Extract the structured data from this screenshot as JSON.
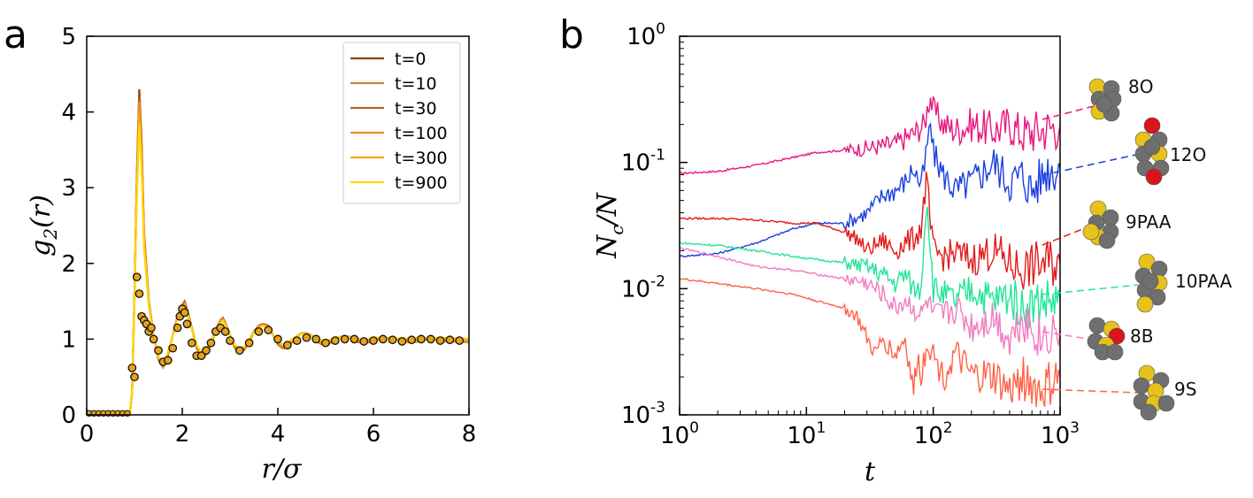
{
  "chart_data": [
    {
      "type": "line",
      "panel_label": "a",
      "xlabel": "r/σ",
      "ylabel": "g2(r)",
      "xlim": [
        0,
        8
      ],
      "ylim": [
        0,
        5
      ],
      "xticks": [
        0,
        2,
        4,
        6,
        8
      ],
      "yticks": [
        0,
        1,
        2,
        3,
        4,
        5
      ],
      "grid": false,
      "legend_position": "top-right",
      "series": [
        {
          "name": "t=0",
          "color": "#8B4513"
        },
        {
          "name": "t=10",
          "color": "#CD853F"
        },
        {
          "name": "t=30",
          "color": "#B8651B"
        },
        {
          "name": "t=100",
          "color": "#F08C28"
        },
        {
          "name": "t=300",
          "color": "#FFA500"
        },
        {
          "name": "t=900",
          "color": "#FFD700"
        }
      ],
      "curve": {
        "x": [
          0,
          0.9,
          0.95,
          1.0,
          1.05,
          1.1,
          1.15,
          1.2,
          1.3,
          1.4,
          1.5,
          1.6,
          1.7,
          1.8,
          1.9,
          2.0,
          2.05,
          2.1,
          2.2,
          2.3,
          2.4,
          2.5,
          2.6,
          2.7,
          2.8,
          2.85,
          2.9,
          3.0,
          3.1,
          3.2,
          3.3,
          3.4,
          3.5,
          3.6,
          3.7,
          3.8,
          3.85,
          3.9,
          4.0,
          4.1,
          4.2,
          4.3,
          4.4,
          4.5,
          4.6,
          4.7,
          4.8,
          4.9,
          5.0,
          5.1,
          5.2,
          5.3,
          5.4,
          5.5,
          5.6,
          5.7,
          5.8,
          5.9,
          6.0,
          6.2,
          6.4,
          6.6,
          6.8,
          7.0,
          7.2,
          7.4,
          7.6,
          7.8,
          8.0
        ],
        "y": [
          0,
          0,
          0.3,
          1.6,
          3.2,
          4.3,
          3.6,
          2.4,
          1.5,
          1.05,
          0.75,
          0.65,
          0.8,
          1.05,
          1.3,
          1.45,
          1.5,
          1.4,
          1.15,
          0.9,
          0.8,
          0.82,
          0.95,
          1.12,
          1.25,
          1.28,
          1.22,
          1.05,
          0.9,
          0.85,
          0.88,
          0.98,
          1.1,
          1.18,
          1.2,
          1.18,
          1.12,
          1.05,
          0.95,
          0.9,
          0.92,
          0.98,
          1.04,
          1.08,
          1.08,
          1.05,
          1.0,
          0.96,
          0.95,
          0.97,
          1.0,
          1.03,
          1.04,
          1.03,
          1.0,
          0.98,
          0.97,
          0.98,
          1.0,
          1.02,
          1.01,
          0.99,
          0.98,
          1.0,
          1.01,
          1.0,
          0.99,
          0.99,
          0.98
        ]
      },
      "markers": {
        "x": [
          0.95,
          1.0,
          1.05,
          1.1,
          1.15,
          1.2,
          1.25,
          1.3,
          1.35,
          1.4,
          1.5,
          1.6,
          1.7,
          1.8,
          1.9,
          1.95,
          2.0,
          2.05,
          2.1,
          2.2,
          2.3,
          2.4,
          2.5,
          2.6,
          2.7,
          2.8,
          2.9,
          3.0,
          3.2,
          3.4,
          3.6,
          3.8,
          4.0,
          4.2,
          4.4,
          4.6,
          4.8,
          5.0,
          5.2,
          5.4,
          5.6,
          5.8,
          6.0,
          6.2,
          6.4,
          6.6,
          6.8,
          7.0,
          7.2,
          7.4,
          7.6,
          7.8
        ],
        "y": [
          0.62,
          0.5,
          1.82,
          1.6,
          1.3,
          1.25,
          1.2,
          1.1,
          1.15,
          1.0,
          0.85,
          0.7,
          0.72,
          0.88,
          1.15,
          1.3,
          1.4,
          1.35,
          1.2,
          0.95,
          0.78,
          0.78,
          0.85,
          0.95,
          1.1,
          1.15,
          1.1,
          0.98,
          0.85,
          0.95,
          1.1,
          1.12,
          1.0,
          0.92,
          0.98,
          1.02,
          1.0,
          0.95,
          0.98,
          1.0,
          1.0,
          0.97,
          0.98,
          1.0,
          0.99,
          0.97,
          0.99,
          1.0,
          1.0,
          0.98,
          0.99,
          0.98
        ],
        "zero_x": [
          0.05,
          0.15,
          0.25,
          0.35,
          0.45,
          0.55,
          0.65,
          0.75,
          0.85
        ]
      }
    },
    {
      "type": "line",
      "panel_label": "b",
      "xlabel": "t",
      "ylabel": "Nc/N",
      "xscale": "log",
      "yscale": "log",
      "xlim": [
        1,
        1000
      ],
      "ylim": [
        0.001,
        1
      ],
      "xticks": [
        {
          "base": "10",
          "exp": "0"
        },
        {
          "base": "10",
          "exp": "1"
        },
        {
          "base": "10",
          "exp": "2"
        },
        {
          "base": "10",
          "exp": "3"
        }
      ],
      "yticks": [
        {
          "base": "10",
          "exp": "-3"
        },
        {
          "base": "10",
          "exp": "-2"
        },
        {
          "base": "10",
          "exp": "-1"
        },
        {
          "base": "10",
          "exp": "0"
        }
      ],
      "grid": false,
      "series": [
        {
          "name": "8O",
          "color": "#E8177E",
          "t": [
            1,
            2,
            4,
            8,
            12,
            20,
            30,
            50,
            70,
            85,
            92,
            95,
            100,
            120,
            150,
            200,
            300,
            400,
            500,
            700,
            1000
          ],
          "values": [
            0.082,
            0.085,
            0.095,
            0.11,
            0.12,
            0.125,
            0.13,
            0.14,
            0.17,
            0.2,
            0.3,
            0.33,
            0.26,
            0.2,
            0.18,
            0.2,
            0.18,
            0.2,
            0.17,
            0.18,
            0.2
          ]
        },
        {
          "name": "12O",
          "color": "#1A3FE0",
          "t": [
            1,
            2,
            4,
            8,
            12,
            20,
            30,
            40,
            50,
            60,
            70,
            80,
            85,
            90,
            95,
            100,
            120,
            150,
            200,
            300,
            400,
            500,
            600,
            800,
            1000
          ],
          "values": [
            0.018,
            0.019,
            0.023,
            0.03,
            0.033,
            0.033,
            0.04,
            0.055,
            0.06,
            0.07,
            0.09,
            0.065,
            0.09,
            0.14,
            0.2,
            0.12,
            0.08,
            0.06,
            0.07,
            0.1,
            0.07,
            0.08,
            0.06,
            0.09,
            0.09
          ]
        },
        {
          "name": "9PAA",
          "color": "#E21B1B",
          "t": [
            1,
            2,
            4,
            8,
            12,
            20,
            25,
            30,
            40,
            50,
            60,
            70,
            80,
            88,
            92,
            95,
            100,
            120,
            150,
            200,
            300,
            400,
            500,
            700,
            1000
          ],
          "values": [
            0.036,
            0.036,
            0.035,
            0.033,
            0.033,
            0.028,
            0.025,
            0.02,
            0.024,
            0.02,
            0.023,
            0.025,
            0.03,
            0.07,
            0.05,
            0.03,
            0.02,
            0.018,
            0.019,
            0.017,
            0.02,
            0.016,
            0.014,
            0.016,
            0.016
          ]
        },
        {
          "name": "10PAA",
          "color": "#22E59A",
          "t": [
            1,
            2,
            4,
            8,
            12,
            20,
            30,
            40,
            50,
            60,
            70,
            80,
            85,
            90,
            95,
            100,
            120,
            150,
            200,
            300,
            400,
            500,
            700,
            1000
          ],
          "values": [
            0.023,
            0.022,
            0.02,
            0.018,
            0.017,
            0.016,
            0.015,
            0.013,
            0.011,
            0.013,
            0.01,
            0.01,
            0.03,
            0.05,
            0.02,
            0.01,
            0.009,
            0.008,
            0.01,
            0.008,
            0.009,
            0.007,
            0.008,
            0.008
          ]
        },
        {
          "name": "8B",
          "color": "#F07CC0",
          "t": [
            1,
            2,
            4,
            8,
            12,
            20,
            30,
            40,
            50,
            60,
            70,
            80,
            90,
            100,
            120,
            150,
            200,
            300,
            400,
            500,
            700,
            1000
          ],
          "values": [
            0.021,
            0.018,
            0.015,
            0.014,
            0.013,
            0.012,
            0.011,
            0.009,
            0.007,
            0.008,
            0.007,
            0.006,
            0.008,
            0.006,
            0.006,
            0.007,
            0.005,
            0.006,
            0.004,
            0.006,
            0.004,
            0.005
          ]
        },
        {
          "name": "9S",
          "color": "#FF6347",
          "t": [
            1,
            2,
            4,
            8,
            12,
            20,
            25,
            30,
            35,
            40,
            50,
            60,
            70,
            75,
            80,
            90,
            100,
            120,
            150,
            200,
            300,
            400,
            500,
            700,
            1000
          ],
          "values": [
            0.012,
            0.011,
            0.01,
            0.009,
            0.008,
            0.007,
            0.006,
            0.004,
            0.003,
            0.004,
            0.003,
            0.004,
            0.0015,
            0.003,
            0.002,
            0.004,
            0.003,
            0.002,
            0.003,
            0.002,
            0.002,
            0.0015,
            0.002,
            0.0015,
            0.002
          ]
        }
      ]
    }
  ]
}
